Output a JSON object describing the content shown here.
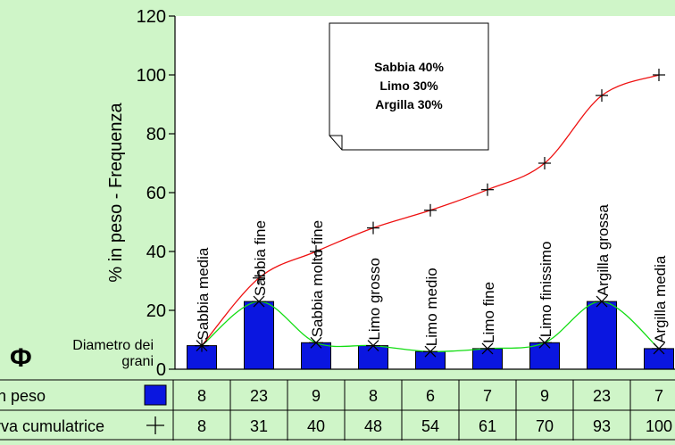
{
  "chart_data": {
    "type": "bar",
    "categories": [
      "Sabbia media",
      "Sabbia fine",
      "Sabbia molto fine",
      "Limo grosso",
      "Limo medio",
      "Limo fine",
      "Limo finissimo",
      "Argilla grossa",
      "Argilla media"
    ],
    "series": [
      {
        "name": "% in peso",
        "type": "bar",
        "values": [
          8,
          23,
          9,
          8,
          6,
          7,
          9,
          23,
          7
        ]
      },
      {
        "name": "Curva cumulatrice",
        "type": "line",
        "values": [
          8,
          31,
          40,
          48,
          54,
          61,
          70,
          93,
          100
        ]
      }
    ],
    "ylabel": "% in peso - Frequenza",
    "ylim": [
      0,
      120
    ],
    "yticks": [
      0,
      20,
      40,
      60,
      80,
      100,
      120
    ],
    "grid": false
  },
  "note": {
    "lines": [
      "Sabbia 40%",
      "Limo 30%",
      "Argilla 30%"
    ]
  },
  "phi": {
    "symbol": "Φ",
    "line1": "Diametro dei",
    "line2": "grani"
  },
  "table": {
    "row_labels": [
      "% in peso",
      "Curva cumulatrice"
    ]
  },
  "colors": {
    "background": "#cff5c8",
    "plot": "#ffffff",
    "bar": "#0a16e0",
    "cumulative_line": "#ee1111",
    "smooth_line": "#11dd11"
  }
}
